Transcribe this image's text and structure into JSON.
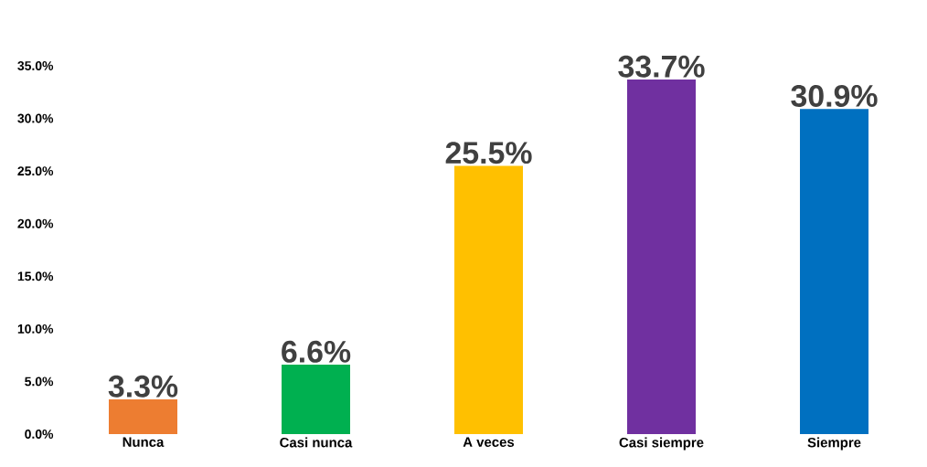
{
  "chart_data": {
    "type": "bar",
    "categories": [
      "Nunca",
      "Casi nunca",
      "A veces",
      "Casi siempre",
      "Siempre"
    ],
    "values": [
      3.3,
      6.6,
      25.5,
      33.7,
      30.9
    ],
    "value_labels": [
      "3.3%",
      "6.6%",
      "25.5%",
      "33.7%",
      "30.9%"
    ],
    "colors": [
      "#ed7d31",
      "#00b050",
      "#ffc000",
      "#7030a0",
      "#0070c0"
    ],
    "ylim": [
      0,
      35
    ],
    "yticks": [
      {
        "value": 0,
        "label": "0.0%"
      },
      {
        "value": 5,
        "label": "5.0%"
      },
      {
        "value": 10,
        "label": "10.0%"
      },
      {
        "value": 15,
        "label": "15.0%"
      },
      {
        "value": 20,
        "label": "20.0%"
      },
      {
        "value": 25,
        "label": "25.0%"
      },
      {
        "value": 30,
        "label": "30.0%"
      },
      {
        "value": 35,
        "label": "35.0%"
      }
    ],
    "grid": false
  }
}
